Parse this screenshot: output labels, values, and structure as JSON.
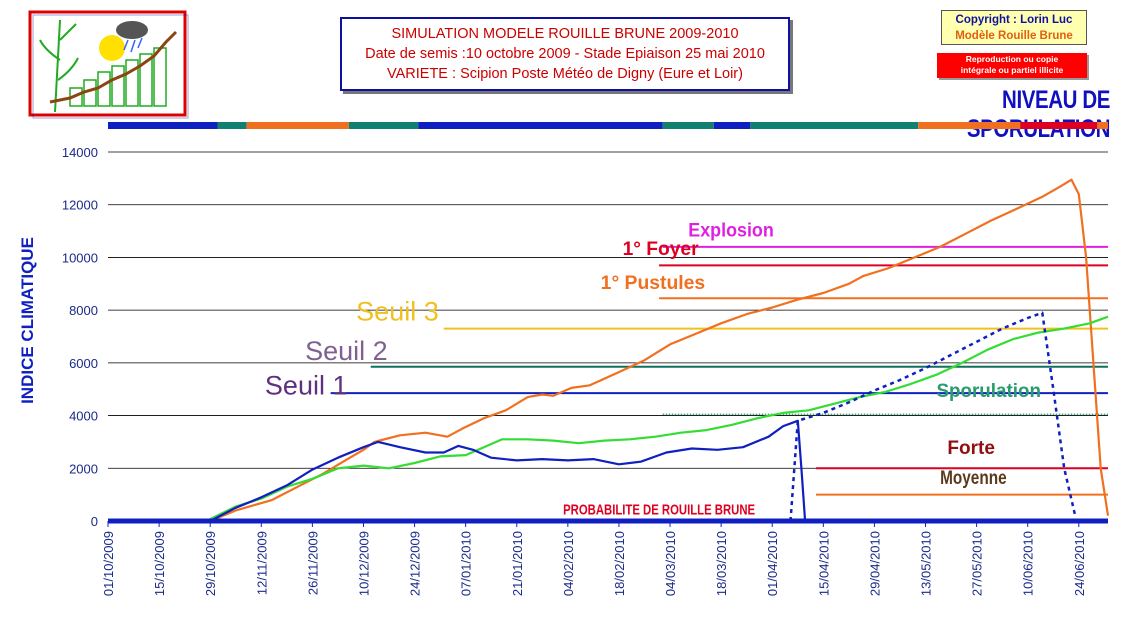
{
  "header": {
    "title_lines": [
      "SIMULATION MODELE ROUILLE BRUNE 2009-2010",
      "Date de semis :10 octobre 2009 - Stade Epiaison 25 mai 2010",
      "VARIETE : Scipion   Poste Météo de Digny (Eure et Loir)"
    ],
    "copyright_1": "Copyright : Lorin Luc",
    "copyright_2": "Modèle Rouille Brune",
    "repro_1": "Reproduction ou copie",
    "repro_2": "intégrale ou partiel illicite",
    "heading": "NIVEAU DE SPORULATION"
  },
  "chart_data": {
    "type": "line",
    "ylabel": "INDICE CLIMATIQUE",
    "ylim": [
      0,
      14000
    ],
    "yticks": [
      0,
      2000,
      4000,
      6000,
      8000,
      10000,
      12000,
      14000
    ],
    "xlim": [
      "2009-10-01",
      "2010-07-02"
    ],
    "xticks": [
      "01/10/2009",
      "15/10/2009",
      "29/10/2009",
      "12/11/2009",
      "26/11/2009",
      "10/12/2009",
      "24/12/2009",
      "07/01/2010",
      "21/01/2010",
      "04/02/2010",
      "18/02/2010",
      "04/03/2010",
      "18/03/2010",
      "01/04/2010",
      "15/04/2010",
      "29/04/2010",
      "13/05/2010",
      "27/05/2010",
      "10/06/2010",
      "24/06/2010"
    ],
    "grid": "horizontal",
    "colors": {
      "orange": "#f07020",
      "green": "#33dd33",
      "blue": "#1020c0",
      "magenta": "#e020e0",
      "red": "#dd0020",
      "teal": "#107060",
      "yellow": "#f0c020",
      "brown": "#5a3a1a",
      "purple": "#603080"
    },
    "top_band": [
      {
        "start": "2009-10-01",
        "end": "2009-10-31",
        "color": "#1020c0"
      },
      {
        "start": "2009-10-31",
        "end": "2009-11-08",
        "color": "#108070"
      },
      {
        "start": "2009-11-08",
        "end": "2009-12-06",
        "color": "#f07020"
      },
      {
        "start": "2009-12-06",
        "end": "2009-12-25",
        "color": "#108070"
      },
      {
        "start": "2009-12-25",
        "end": "2010-03-02",
        "color": "#1020c0"
      },
      {
        "start": "2010-03-02",
        "end": "2010-03-16",
        "color": "#108070"
      },
      {
        "start": "2010-03-16",
        "end": "2010-03-26",
        "color": "#1020c0"
      },
      {
        "start": "2010-03-26",
        "end": "2010-05-11",
        "color": "#108070"
      },
      {
        "start": "2010-05-11",
        "end": "2010-06-08",
        "color": "#f07020"
      },
      {
        "start": "2010-06-08",
        "end": "2010-06-29",
        "color": "#dd0020"
      },
      {
        "start": "2010-06-29",
        "end": "2010-07-02",
        "color": "#f07020"
      }
    ],
    "thresholds": [
      {
        "label": "Explosion",
        "value": 10400,
        "x_start": "2010-03-02",
        "color": "#e020e0",
        "label_x": "2010-03-09",
        "label_value": 10800
      },
      {
        "label": "1° Foyer",
        "value": 9700,
        "x_start": "2010-03-01",
        "color": "#dd0020",
        "label_x": "2010-02-19",
        "label_value": 10100
      },
      {
        "label": "1° Pustules",
        "value": 8450,
        "x_start": "2010-03-01",
        "color": "#f07020",
        "label_x": "2010-02-13",
        "label_value": 8800
      },
      {
        "label": "Seuil 3",
        "value": 7300,
        "x_start": "2010-01-01",
        "color": "#f0c020",
        "label_x": "2009-12-08",
        "label_value": 7600
      },
      {
        "label": "Seuil 2",
        "value": 5850,
        "x_start": "2009-12-12",
        "color": "#107060",
        "label_x": "2009-11-24",
        "label_value": 6100
      },
      {
        "label": "Seuil 1",
        "value": 4850,
        "x_start": "2009-12-01",
        "color": "#1020c0",
        "label_x": "2009-11-13",
        "label_value": 4800
      },
      {
        "label": "Sporulation",
        "value": 4050,
        "x_start": "2010-03-02",
        "color": "#2a9a70",
        "dotted": true,
        "label_x": "2010-05-16",
        "label_value": 4700
      },
      {
        "label": "Forte",
        "value": 2000,
        "x_start": "2010-04-13",
        "color": "#dd0020",
        "label_x": "2010-05-19",
        "label_value": 2550
      },
      {
        "label": "Moyenne",
        "value": 1000,
        "x_start": "2010-04-13",
        "color": "#f07020",
        "label_x": "2010-05-17",
        "label_value": 1400
      }
    ],
    "probability_label": "PROBABILITE DE ROUILLE BRUNE",
    "series": [
      {
        "color": "#f07020",
        "points": [
          [
            "2009-10-01",
            0
          ],
          [
            "2009-10-29",
            0
          ],
          [
            "2009-11-05",
            400
          ],
          [
            "2009-11-15",
            800
          ],
          [
            "2009-11-22",
            1300
          ],
          [
            "2009-11-29",
            1800
          ],
          [
            "2009-12-05",
            2300
          ],
          [
            "2009-12-10",
            2700
          ],
          [
            "2009-12-13",
            3000
          ],
          [
            "2009-12-20",
            3250
          ],
          [
            "2009-12-27",
            3350
          ],
          [
            "2010-01-02",
            3200
          ],
          [
            "2010-01-06",
            3500
          ],
          [
            "2010-01-12",
            3900
          ],
          [
            "2010-01-18",
            4200
          ],
          [
            "2010-01-24",
            4700
          ],
          [
            "2010-01-28",
            4800
          ],
          [
            "2010-01-31",
            4750
          ],
          [
            "2010-02-05",
            5050
          ],
          [
            "2010-02-10",
            5150
          ],
          [
            "2010-02-18",
            5650
          ],
          [
            "2010-02-25",
            6100
          ],
          [
            "2010-03-04",
            6700
          ],
          [
            "2010-03-11",
            7100
          ],
          [
            "2010-03-18",
            7500
          ],
          [
            "2010-03-25",
            7850
          ],
          [
            "2010-04-01",
            8100
          ],
          [
            "2010-04-08",
            8400
          ],
          [
            "2010-04-15",
            8650
          ],
          [
            "2010-04-22",
            9000
          ],
          [
            "2010-04-26",
            9300
          ],
          [
            "2010-05-03",
            9600
          ],
          [
            "2010-05-10",
            10000
          ],
          [
            "2010-05-17",
            10400
          ],
          [
            "2010-05-24",
            10900
          ],
          [
            "2010-05-31",
            11400
          ],
          [
            "2010-06-07",
            11850
          ],
          [
            "2010-06-14",
            12300
          ],
          [
            "2010-06-19",
            12700
          ],
          [
            "2010-06-22",
            12950
          ],
          [
            "2010-06-24",
            12400
          ],
          [
            "2010-06-26",
            10000
          ],
          [
            "2010-06-28",
            6000
          ],
          [
            "2010-06-30",
            2000
          ],
          [
            "2010-07-02",
            200
          ]
        ]
      },
      {
        "color": "#33dd33",
        "points": [
          [
            "2009-10-01",
            0
          ],
          [
            "2009-10-28",
            0
          ],
          [
            "2009-11-05",
            550
          ],
          [
            "2009-11-12",
            850
          ],
          [
            "2009-11-19",
            1300
          ],
          [
            "2009-11-26",
            1600
          ],
          [
            "2009-12-03",
            2000
          ],
          [
            "2009-12-10",
            2100
          ],
          [
            "2009-12-17",
            2000
          ],
          [
            "2009-12-24",
            2200
          ],
          [
            "2009-12-31",
            2450
          ],
          [
            "2010-01-07",
            2500
          ],
          [
            "2010-01-12",
            2800
          ],
          [
            "2010-01-17",
            3100
          ],
          [
            "2010-01-24",
            3100
          ],
          [
            "2010-01-31",
            3050
          ],
          [
            "2010-02-07",
            2950
          ],
          [
            "2010-02-14",
            3050
          ],
          [
            "2010-02-21",
            3100
          ],
          [
            "2010-02-28",
            3200
          ],
          [
            "2010-03-07",
            3350
          ],
          [
            "2010-03-14",
            3450
          ],
          [
            "2010-03-21",
            3650
          ],
          [
            "2010-03-28",
            3900
          ],
          [
            "2010-04-04",
            4100
          ],
          [
            "2010-04-11",
            4200
          ],
          [
            "2010-04-18",
            4450
          ],
          [
            "2010-04-25",
            4700
          ],
          [
            "2010-05-02",
            4900
          ],
          [
            "2010-05-09",
            5200
          ],
          [
            "2010-05-16",
            5550
          ],
          [
            "2010-05-23",
            6000
          ],
          [
            "2010-05-30",
            6500
          ],
          [
            "2010-06-06",
            6900
          ],
          [
            "2010-06-13",
            7150
          ],
          [
            "2010-06-20",
            7300
          ],
          [
            "2010-06-27",
            7500
          ],
          [
            "2010-07-02",
            7750
          ]
        ]
      },
      {
        "color": "#1020c0",
        "points": [
          [
            "2009-10-01",
            0
          ],
          [
            "2009-10-29",
            0
          ],
          [
            "2009-11-05",
            500
          ],
          [
            "2009-11-12",
            900
          ],
          [
            "2009-11-19",
            1350
          ],
          [
            "2009-11-26",
            1950
          ],
          [
            "2009-12-03",
            2400
          ],
          [
            "2009-12-10",
            2800
          ],
          [
            "2009-12-14",
            3000
          ],
          [
            "2009-12-20",
            2800
          ],
          [
            "2009-12-27",
            2600
          ],
          [
            "2010-01-01",
            2600
          ],
          [
            "2010-01-05",
            2850
          ],
          [
            "2010-01-09",
            2700
          ],
          [
            "2010-01-14",
            2400
          ],
          [
            "2010-01-21",
            2300
          ],
          [
            "2010-01-28",
            2350
          ],
          [
            "2010-02-04",
            2300
          ],
          [
            "2010-02-11",
            2350
          ],
          [
            "2010-02-18",
            2150
          ],
          [
            "2010-02-24",
            2250
          ],
          [
            "2010-03-03",
            2600
          ],
          [
            "2010-03-10",
            2750
          ],
          [
            "2010-03-17",
            2700
          ],
          [
            "2010-03-24",
            2800
          ],
          [
            "2010-03-31",
            3200
          ],
          [
            "2010-04-04",
            3600
          ],
          [
            "2010-04-08",
            3800
          ],
          [
            "2010-04-09",
            2000
          ],
          [
            "2010-04-10",
            0
          ],
          [
            "2010-07-02",
            0
          ]
        ]
      },
      {
        "color": "#1020c0",
        "dashed": true,
        "points": [
          [
            "2010-04-06",
            0
          ],
          [
            "2010-04-08",
            3800
          ],
          [
            "2010-04-15",
            4100
          ],
          [
            "2010-04-22",
            4500
          ],
          [
            "2010-04-29",
            4950
          ],
          [
            "2010-05-06",
            5350
          ],
          [
            "2010-05-13",
            5800
          ],
          [
            "2010-05-20",
            6300
          ],
          [
            "2010-05-27",
            6800
          ],
          [
            "2010-06-03",
            7300
          ],
          [
            "2010-06-10",
            7700
          ],
          [
            "2010-06-14",
            7900
          ],
          [
            "2010-06-17",
            5000
          ],
          [
            "2010-06-20",
            2000
          ],
          [
            "2010-06-23",
            200
          ]
        ]
      }
    ]
  }
}
